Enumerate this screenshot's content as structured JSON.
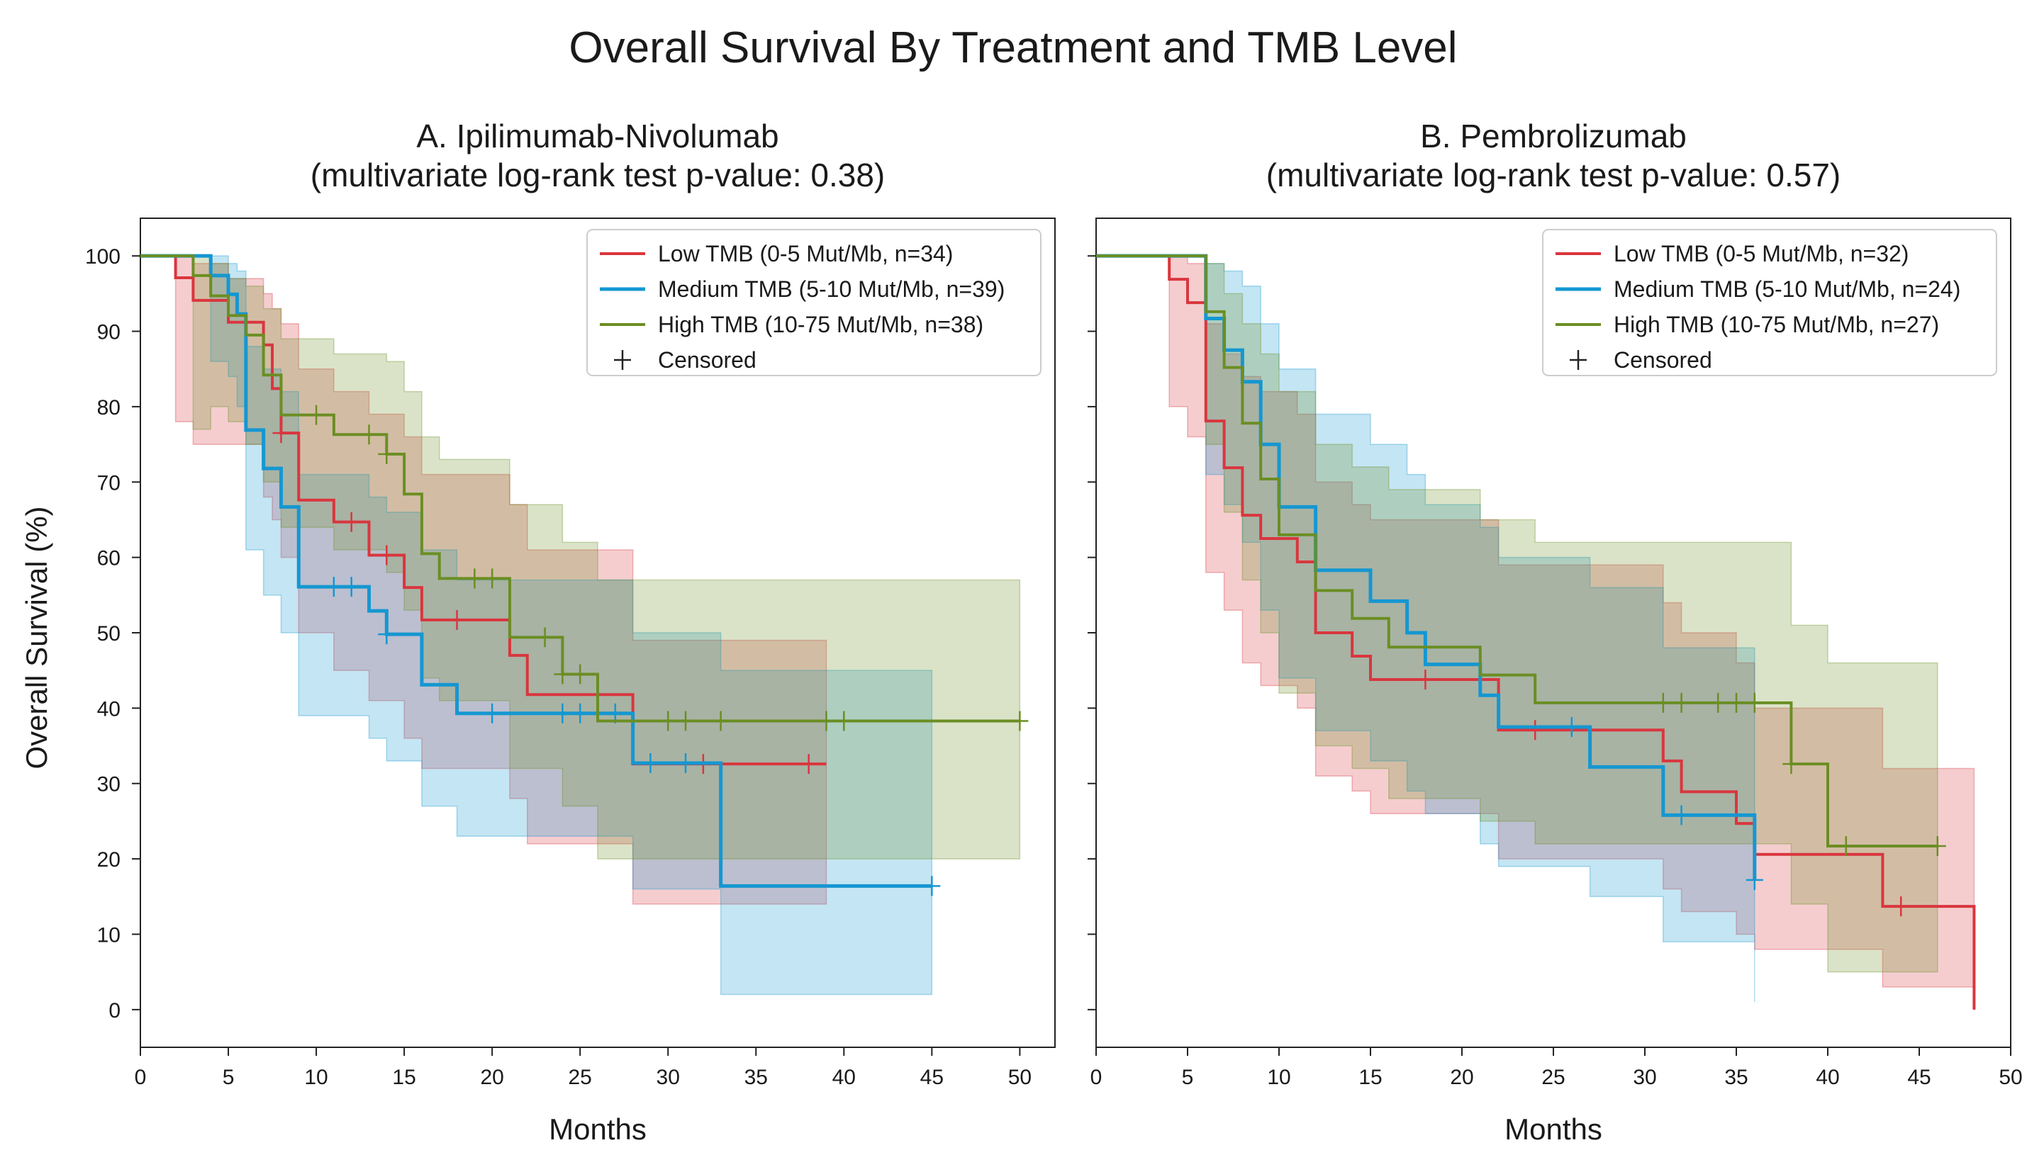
{
  "figure_title": "Overall Survival By Treatment and TMB Level",
  "colors": {
    "low": "#d9363e",
    "medium": "#1597d1",
    "high": "#6b8e23"
  },
  "chart_data": [
    {
      "type": "line",
      "subtype": "kaplan-meier",
      "title_line1": "A. Ipilimumab-Nivolumab",
      "title_line2": "(multivariate log-rank test p-value: 0.38)",
      "xlabel": "Months",
      "ylabel": "Overall Survival (%)",
      "xlim": [
        0,
        52
      ],
      "ylim": [
        -5,
        105
      ],
      "xticks": [
        0,
        5,
        10,
        15,
        20,
        25,
        30,
        35,
        40,
        45,
        50
      ],
      "yticks": [
        0,
        10,
        20,
        30,
        40,
        50,
        60,
        70,
        80,
        90,
        100
      ],
      "legend_position": "top-right",
      "censored_label": "Censored",
      "series": [
        {
          "name": "Low TMB (0-5 Mut/Mb, n=34)",
          "color_key": "low",
          "steps": [
            [
              0,
              100
            ],
            [
              2,
              97.1
            ],
            [
              3,
              94.1
            ],
            [
              5,
              91.2
            ],
            [
              7,
              88.2
            ],
            [
              7.5,
              82.4
            ],
            [
              8,
              76.5
            ],
            [
              9,
              67.6
            ],
            [
              11,
              64.7
            ],
            [
              13,
              60.3
            ],
            [
              15,
              56
            ],
            [
              16,
              51.7
            ],
            [
              21,
              47
            ],
            [
              22,
              41.8
            ],
            [
              28,
              32.6
            ],
            [
              39,
              32.6
            ]
          ],
          "censor": [
            [
              8,
              76.5
            ],
            [
              12,
              64.7
            ],
            [
              14,
              60.3
            ],
            [
              18,
              51.7
            ],
            [
              32,
              32.6
            ],
            [
              38,
              32.6
            ]
          ],
          "ci": [
            [
              0,
              100,
              100
            ],
            [
              2,
              78,
              100
            ],
            [
              3,
              75,
              99
            ],
            [
              5,
              75,
              97
            ],
            [
              7,
              68,
              95
            ],
            [
              7.5,
              65,
              93
            ],
            [
              8,
              60,
              91
            ],
            [
              9,
              50,
              85
            ],
            [
              11,
              45,
              82
            ],
            [
              13,
              41,
              79
            ],
            [
              15,
              36,
              76
            ],
            [
              16,
              32,
              71
            ],
            [
              21,
              28,
              67
            ],
            [
              22,
              22,
              61
            ],
            [
              28,
              14,
              49
            ],
            [
              39,
              14,
              49
            ]
          ]
        },
        {
          "name": "Medium TMB (5-10 Mut/Mb, n=39)",
          "color_key": "medium",
          "steps": [
            [
              0,
              100
            ],
            [
              4,
              97.4
            ],
            [
              5,
              94.9
            ],
            [
              5.5,
              92.3
            ],
            [
              6,
              76.9
            ],
            [
              7,
              71.8
            ],
            [
              8,
              66.7
            ],
            [
              9,
              56.1
            ],
            [
              13,
              52.9
            ],
            [
              14,
              49.8
            ],
            [
              16,
              43.1
            ],
            [
              18,
              39.3
            ],
            [
              28,
              32.7
            ],
            [
              33,
              16.4
            ],
            [
              45,
              16.4
            ]
          ],
          "censor": [
            [
              11,
              56.1
            ],
            [
              12,
              56.1
            ],
            [
              14,
              49.8
            ],
            [
              20,
              39.3
            ],
            [
              24,
              39.3
            ],
            [
              25,
              39.3
            ],
            [
              27,
              39.3
            ],
            [
              29,
              32.7
            ],
            [
              31,
              32.7
            ],
            [
              45,
              16.4
            ]
          ],
          "ci": [
            [
              0,
              100,
              100
            ],
            [
              4,
              86,
              100
            ],
            [
              5,
              84,
              99
            ],
            [
              5.5,
              80,
              98
            ],
            [
              6,
              61,
              88
            ],
            [
              7,
              55,
              85
            ],
            [
              8,
              50,
              82
            ],
            [
              9,
              39,
              71
            ],
            [
              13,
              36,
              68
            ],
            [
              14,
              33,
              66
            ],
            [
              16,
              27,
              61
            ],
            [
              18,
              23,
              57
            ],
            [
              28,
              16,
              50
            ],
            [
              33,
              2,
              45
            ],
            [
              45,
              2,
              45
            ]
          ]
        },
        {
          "name": "High TMB (10-75 Mut/Mb, n=38)",
          "color_key": "high",
          "steps": [
            [
              0,
              100
            ],
            [
              3,
              97.4
            ],
            [
              4,
              94.7
            ],
            [
              5,
              92.1
            ],
            [
              6,
              89.5
            ],
            [
              7,
              84.2
            ],
            [
              8,
              78.9
            ],
            [
              11,
              76.3
            ],
            [
              14,
              73.7
            ],
            [
              15,
              68.4
            ],
            [
              16,
              60.5
            ],
            [
              17,
              57.2
            ],
            [
              21,
              49.4
            ],
            [
              24,
              44.5
            ],
            [
              26,
              38.3
            ],
            [
              50,
              38.3
            ]
          ],
          "censor": [
            [
              10,
              78.9
            ],
            [
              13,
              76.3
            ],
            [
              14,
              73.7
            ],
            [
              19,
              57.2
            ],
            [
              20,
              57.2
            ],
            [
              23,
              49.4
            ],
            [
              24,
              44.5
            ],
            [
              25,
              44.5
            ],
            [
              30,
              38.3
            ],
            [
              31,
              38.3
            ],
            [
              33,
              38.3
            ],
            [
              39,
              38.3
            ],
            [
              40,
              38.3
            ],
            [
              50,
              38.3
            ]
          ],
          "ci": [
            [
              0,
              100,
              100
            ],
            [
              3,
              77,
              100
            ],
            [
              4,
              80,
              99
            ],
            [
              5,
              78,
              97
            ],
            [
              6,
              75,
              96
            ],
            [
              7,
              70,
              93
            ],
            [
              8,
              64,
              89
            ],
            [
              11,
              61,
              87
            ],
            [
              14,
              58,
              86
            ],
            [
              15,
              53,
              82
            ],
            [
              16,
              44,
              76
            ],
            [
              17,
              41,
              73
            ],
            [
              21,
              32,
              67
            ],
            [
              24,
              27,
              62
            ],
            [
              26,
              20,
              57
            ],
            [
              50,
              20,
              57
            ]
          ]
        }
      ]
    },
    {
      "type": "line",
      "subtype": "kaplan-meier",
      "title_line1": "B. Pembrolizumab",
      "title_line2": "(multivariate log-rank test p-value: 0.57)",
      "xlabel": "Months",
      "ylabel": "",
      "xlim": [
        0,
        50
      ],
      "ylim": [
        -5,
        105
      ],
      "xticks": [
        0,
        5,
        10,
        15,
        20,
        25,
        30,
        35,
        40,
        45,
        50
      ],
      "yticks": [
        0,
        10,
        20,
        30,
        40,
        50,
        60,
        70,
        80,
        90,
        100
      ],
      "legend_position": "top-right",
      "censored_label": "Censored",
      "series": [
        {
          "name": "Low TMB (0-5 Mut/Mb, n=32)",
          "color_key": "low",
          "steps": [
            [
              0,
              100
            ],
            [
              4,
              96.9
            ],
            [
              5,
              93.8
            ],
            [
              6,
              78.1
            ],
            [
              7,
              71.9
            ],
            [
              8,
              65.6
            ],
            [
              9,
              62.5
            ],
            [
              11,
              59.4
            ],
            [
              12,
              50
            ],
            [
              14,
              46.9
            ],
            [
              15,
              43.8
            ],
            [
              22,
              37.1
            ],
            [
              31,
              33
            ],
            [
              32,
              28.9
            ],
            [
              35,
              24.7
            ],
            [
              36,
              20.6
            ],
            [
              43,
              13.7
            ],
            [
              48,
              0
            ]
          ],
          "censor": [
            [
              18,
              43.8
            ],
            [
              24,
              37.1
            ],
            [
              44,
              13.7
            ]
          ],
          "ci": [
            [
              0,
              100,
              100
            ],
            [
              4,
              80,
              100
            ],
            [
              5,
              76,
              99
            ],
            [
              6,
              58,
              91
            ],
            [
              7,
              53,
              87
            ],
            [
              8,
              46,
              84
            ],
            [
              9,
              43,
              82
            ],
            [
              11,
              40,
              79
            ],
            [
              12,
              31,
              70
            ],
            [
              14,
              29,
              67
            ],
            [
              15,
              26,
              65
            ],
            [
              22,
              20,
              59
            ],
            [
              31,
              16,
              54
            ],
            [
              32,
              13,
              50
            ],
            [
              35,
              10,
              46
            ],
            [
              36,
              8,
              40
            ],
            [
              43,
              3,
              32
            ],
            [
              48,
              3,
              32
            ]
          ]
        },
        {
          "name": "Medium TMB (5-10 Mut/Mb, n=24)",
          "color_key": "medium",
          "steps": [
            [
              0,
              100
            ],
            [
              6,
              91.7
            ],
            [
              7,
              87.5
            ],
            [
              8,
              83.3
            ],
            [
              9,
              75
            ],
            [
              10,
              66.7
            ],
            [
              12,
              58.3
            ],
            [
              15,
              54.2
            ],
            [
              17,
              50
            ],
            [
              18,
              45.8
            ],
            [
              21,
              41.7
            ],
            [
              22,
              37.5
            ],
            [
              27,
              32.2
            ],
            [
              31,
              25.8
            ],
            [
              36,
              17.2
            ]
          ],
          "censor": [
            [
              26,
              37.5
            ],
            [
              32,
              25.8
            ],
            [
              36,
              17.2
            ]
          ],
          "ci": [
            [
              0,
              100,
              100
            ],
            [
              6,
              71,
              99
            ],
            [
              7,
              67,
              98
            ],
            [
              8,
              62,
              96
            ],
            [
              9,
              53,
              91
            ],
            [
              10,
              44,
              85
            ],
            [
              12,
              37,
              79
            ],
            [
              15,
              33,
              75
            ],
            [
              17,
              29,
              71
            ],
            [
              18,
              26,
              67
            ],
            [
              21,
              22,
              64
            ],
            [
              22,
              19,
              60
            ],
            [
              27,
              15,
              56
            ],
            [
              31,
              9,
              48
            ],
            [
              36,
              1,
              40
            ]
          ]
        },
        {
          "name": "High TMB (10-75 Mut/Mb, n=27)",
          "color_key": "high",
          "steps": [
            [
              0,
              100
            ],
            [
              6,
              92.6
            ],
            [
              7,
              85.2
            ],
            [
              8,
              77.8
            ],
            [
              9,
              70.4
            ],
            [
              10,
              63
            ],
            [
              12,
              55.6
            ],
            [
              14,
              51.9
            ],
            [
              16,
              48.1
            ],
            [
              21,
              44.4
            ],
            [
              24,
              40.7
            ],
            [
              38,
              32.6
            ],
            [
              40,
              21.7
            ],
            [
              46,
              21.7
            ]
          ],
          "censor": [
            [
              31,
              40.7
            ],
            [
              32,
              40.7
            ],
            [
              34,
              40.7
            ],
            [
              35,
              40.7
            ],
            [
              36,
              40.7
            ],
            [
              38,
              32.6
            ],
            [
              41,
              21.7
            ],
            [
              46,
              21.7
            ]
          ],
          "ci": [
            [
              0,
              100,
              100
            ],
            [
              6,
              75,
              99
            ],
            [
              7,
              66,
              95
            ],
            [
              8,
              57,
              91
            ],
            [
              9,
              50,
              87
            ],
            [
              10,
              42,
              82
            ],
            [
              12,
              35,
              75
            ],
            [
              14,
              32,
              72
            ],
            [
              16,
              28,
              69
            ],
            [
              21,
              25,
              65
            ],
            [
              24,
              22,
              62
            ],
            [
              38,
              14,
              51
            ],
            [
              40,
              5,
              46
            ],
            [
              46,
              5,
              46
            ]
          ]
        }
      ]
    }
  ]
}
